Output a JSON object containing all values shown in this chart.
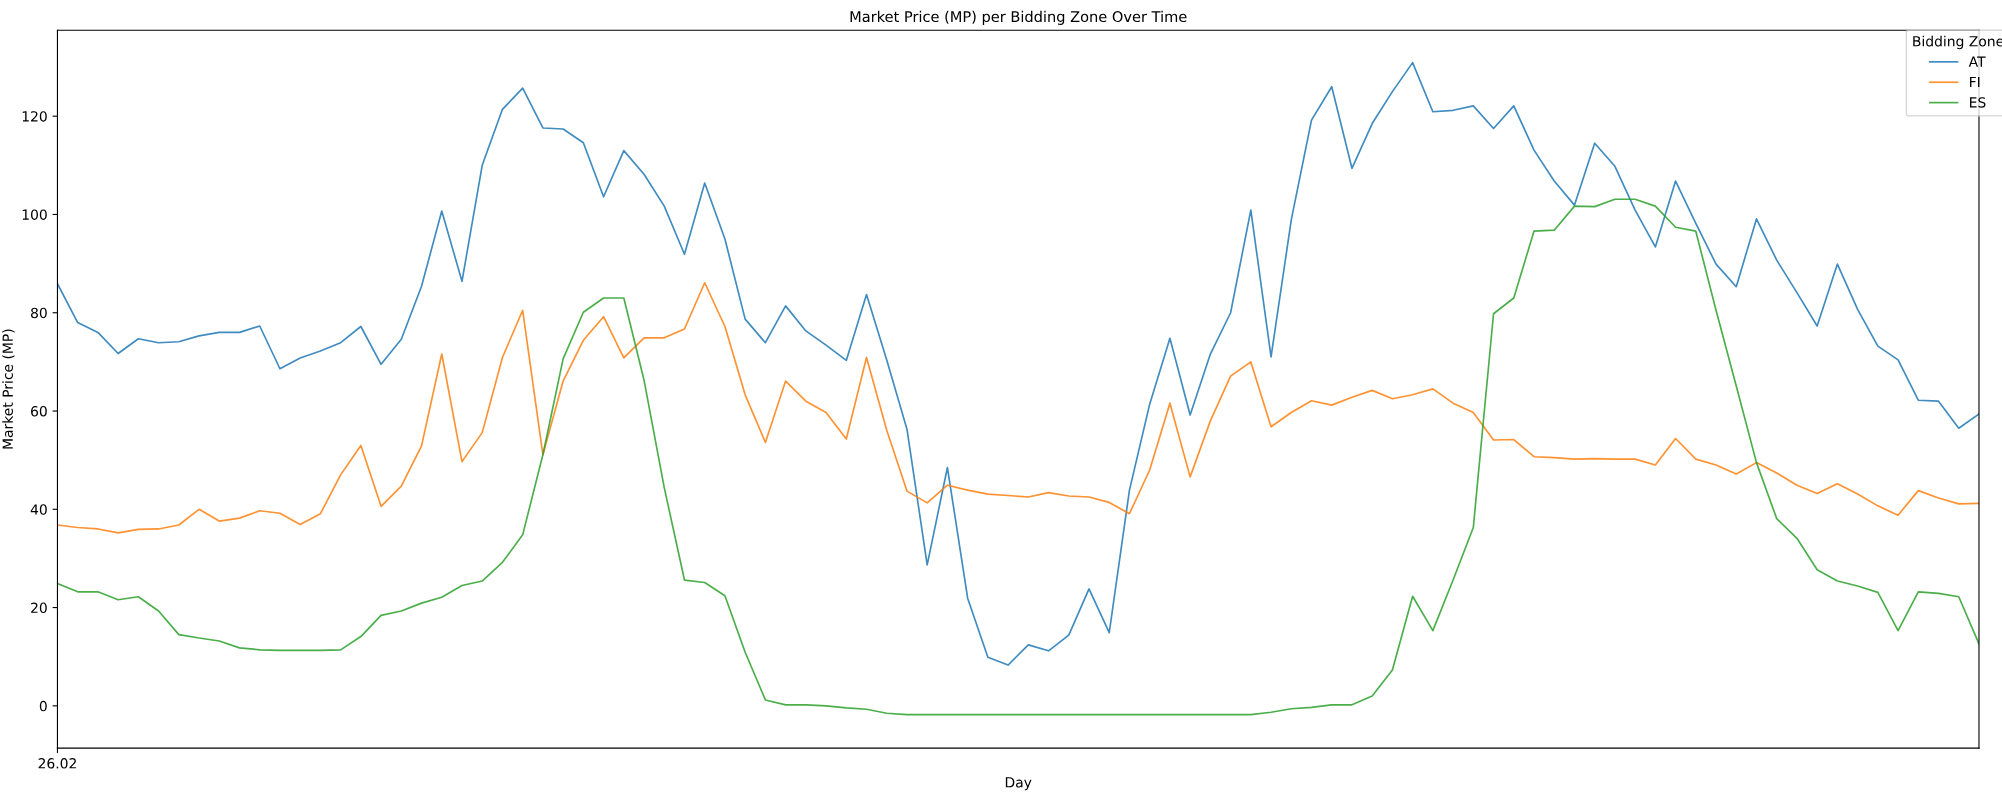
{
  "chart_data": {
    "type": "line",
    "title": "Market Price (MP) per Bidding Zone Over Time",
    "xlabel": "Day",
    "ylabel": "Market Price (MP)",
    "legend_title": "Bidding Zone",
    "legend": "top right",
    "categories": [
      "26.02",
      null,
      null,
      null,
      null,
      null,
      null,
      null,
      null,
      null,
      null,
      null,
      null,
      null,
      null,
      null,
      null,
      null,
      null,
      null,
      null,
      null,
      null,
      null,
      null,
      null,
      null,
      null,
      null,
      null,
      null,
      null,
      null,
      null,
      null,
      null,
      null,
      null,
      null,
      null,
      null,
      null,
      null,
      null,
      null,
      null,
      null,
      null,
      null,
      null,
      null,
      null,
      null,
      null,
      null,
      null,
      null,
      null,
      null,
      null,
      null,
      null,
      null,
      null,
      null,
      null,
      null,
      null,
      null,
      null,
      null,
      null,
      null,
      null,
      null,
      null,
      null,
      null,
      null,
      null,
      null,
      null,
      null,
      null,
      null,
      null,
      null,
      null,
      null,
      null,
      null,
      null,
      null,
      null,
      null,
      null
    ],
    "ylim": [
      -8.6,
      137.5
    ],
    "yticks": [
      0,
      20,
      40,
      60,
      80,
      100,
      120
    ],
    "series": [
      {
        "name": "AT",
        "color": "#1f77b4",
        "values": [
          85.9,
          78.0,
          76.0,
          71.7,
          74.7,
          73.9,
          74.1,
          75.3,
          76.0,
          76.0,
          77.3,
          68.6,
          70.8,
          72.2,
          73.9,
          77.2,
          69.5,
          74.6,
          85.4,
          100.7,
          86.4,
          110.0,
          121.4,
          125.7,
          117.6,
          117.4,
          114.6,
          103.6,
          113.0,
          108.2,
          101.7,
          91.9,
          106.4,
          95.0,
          78.7,
          73.9,
          81.4,
          76.3,
          73.4,
          70.3,
          83.7,
          70.4,
          56.3,
          28.7,
          48.5,
          21.9,
          9.9,
          8.3,
          12.4,
          11.2,
          14.4,
          23.8,
          14.9,
          43.9,
          61.4,
          74.8,
          59.2,
          71.6,
          80.0,
          100.9,
          71.0,
          98.9,
          119.2,
          126.0,
          109.4,
          118.5,
          125.0,
          130.9,
          120.9,
          121.2,
          122.1,
          117.5,
          122.1,
          113.1,
          106.8,
          101.9,
          114.5,
          109.8,
          100.9,
          93.4,
          106.8,
          98.2,
          89.9,
          85.3,
          99.1,
          90.7,
          84.1,
          77.3,
          89.9,
          80.7,
          73.2,
          70.4,
          62.2,
          62.0,
          56.5,
          59.4
        ]
      },
      {
        "name": "FI",
        "color": "#ff7f0e",
        "values": [
          36.8,
          36.3,
          36.0,
          35.2,
          35.9,
          36.0,
          36.8,
          40.0,
          37.6,
          38.2,
          39.7,
          39.2,
          36.9,
          39.1,
          47.0,
          53.0,
          40.6,
          44.7,
          52.9,
          71.6,
          49.7,
          55.6,
          70.9,
          80.5,
          51.1,
          66.1,
          74.4,
          79.2,
          70.8,
          74.9,
          74.9,
          76.7,
          86.1,
          77.2,
          63.3,
          53.6,
          66.1,
          62.0,
          59.7,
          54.3,
          70.9,
          56.1,
          43.7,
          41.3,
          44.9,
          43.9,
          43.1,
          42.8,
          42.5,
          43.4,
          42.7,
          42.5,
          41.4,
          39.1,
          48.0,
          61.6,
          46.6,
          58.0,
          67.1,
          70.0,
          56.8,
          59.7,
          62.1,
          61.2,
          62.8,
          64.2,
          62.5,
          63.3,
          64.5,
          61.6,
          59.7,
          54.1,
          54.2,
          50.7,
          50.5,
          50.2,
          50.3,
          50.2,
          50.2,
          49.0,
          54.4,
          50.2,
          49.0,
          47.2,
          49.5,
          47.4,
          44.9,
          43.2,
          45.2,
          43.1,
          40.7,
          38.8,
          43.8,
          42.3,
          41.1,
          41.2
        ]
      },
      {
        "name": "ES",
        "color": "#2ca02c",
        "values": [
          24.9,
          23.2,
          23.2,
          21.6,
          22.2,
          19.3,
          14.5,
          13.8,
          13.2,
          11.8,
          11.4,
          11.3,
          11.3,
          11.3,
          11.4,
          14.1,
          18.4,
          19.3,
          20.9,
          22.1,
          24.5,
          25.4,
          29.2,
          34.8,
          51.1,
          70.6,
          80.1,
          83.0,
          83.0,
          66.3,
          44.4,
          25.6,
          25.1,
          22.4,
          10.9,
          1.2,
          0.2,
          0.2,
          0.0,
          -0.4,
          -0.7,
          -1.5,
          -1.8,
          -1.8,
          -1.8,
          -1.8,
          -1.8,
          -1.8,
          -1.8,
          -1.8,
          -1.8,
          -1.8,
          -1.8,
          -1.8,
          -1.8,
          -1.8,
          -1.8,
          -1.8,
          -1.8,
          -1.8,
          -1.3,
          -0.6,
          -0.3,
          0.2,
          0.2,
          2.0,
          7.3,
          22.3,
          15.3,
          25.6,
          36.3,
          79.8,
          83.0,
          96.6,
          96.8,
          101.7,
          101.6,
          103.1,
          103.1,
          101.7,
          97.4,
          96.6,
          80.5,
          65.1,
          49.5,
          38.1,
          34.1,
          27.7,
          25.4,
          24.4,
          23.1,
          15.3,
          23.2,
          22.9,
          22.2,
          12.6
        ]
      }
    ]
  }
}
